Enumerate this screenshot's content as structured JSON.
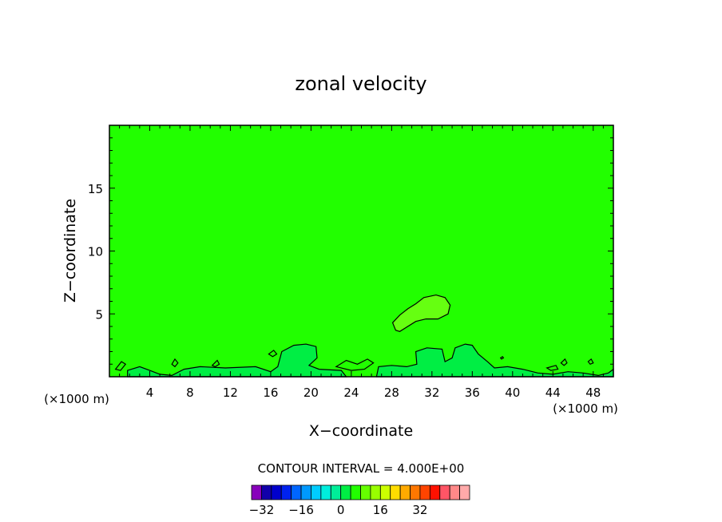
{
  "chart_data": {
    "type": "heatmap",
    "title": "zonal velocity",
    "xlabel": "X−coordinate",
    "ylabel": "Z−coordinate",
    "x_unit_left": "(×1000 m)",
    "x_unit_right": "(×1000 m)",
    "xlim": [
      0,
      50
    ],
    "ylim": [
      0,
      20
    ],
    "x_ticks": [
      4,
      8,
      12,
      16,
      20,
      24,
      28,
      32,
      36,
      40,
      44,
      48
    ],
    "y_ticks": [
      5,
      10,
      15
    ],
    "background_color": "#22ff00",
    "contour_interval_label": "CONTOUR INTERVAL = 4.000E+00",
    "contour_interval": 4,
    "features": [
      {
        "name": "upper-positive-blob",
        "color": "#66ff11",
        "points": [
          [
            28.4,
            3.7
          ],
          [
            28.1,
            4.3
          ],
          [
            28.8,
            4.9
          ],
          [
            29.6,
            5.4
          ],
          [
            30.4,
            5.8
          ],
          [
            31.2,
            6.3
          ],
          [
            32.4,
            6.5
          ],
          [
            33.3,
            6.3
          ],
          [
            33.8,
            5.7
          ],
          [
            33.6,
            5.0
          ],
          [
            32.6,
            4.6
          ],
          [
            31.4,
            4.6
          ],
          [
            30.4,
            4.4
          ],
          [
            29.4,
            3.9
          ],
          [
            28.8,
            3.6
          ]
        ]
      },
      {
        "name": "surface-band-left",
        "color": "#00ee44",
        "points": [
          [
            1.8,
            0.0
          ],
          [
            1.8,
            0.5
          ],
          [
            3.0,
            0.8
          ],
          [
            4.0,
            0.5
          ],
          [
            5.0,
            0.2
          ],
          [
            6.2,
            0.1
          ],
          [
            7.4,
            0.6
          ],
          [
            9.0,
            0.8
          ],
          [
            11.5,
            0.7
          ],
          [
            14.5,
            0.8
          ],
          [
            16.0,
            0.4
          ],
          [
            16.7,
            0.8
          ],
          [
            17.1,
            2.0
          ],
          [
            18.3,
            2.5
          ],
          [
            19.5,
            2.6
          ],
          [
            20.5,
            2.4
          ],
          [
            20.6,
            1.5
          ],
          [
            19.8,
            0.9
          ],
          [
            20.8,
            0.6
          ],
          [
            23.0,
            0.5
          ],
          [
            23.5,
            0.0
          ]
        ]
      },
      {
        "name": "surface-band-right",
        "color": "#00ee44",
        "points": [
          [
            26.5,
            0.0
          ],
          [
            26.7,
            0.8
          ],
          [
            28.0,
            0.9
          ],
          [
            29.5,
            0.8
          ],
          [
            30.5,
            1.0
          ],
          [
            30.4,
            2.0
          ],
          [
            31.5,
            2.3
          ],
          [
            33.0,
            2.2
          ],
          [
            33.3,
            1.2
          ],
          [
            34.0,
            1.5
          ],
          [
            34.3,
            2.3
          ],
          [
            35.3,
            2.6
          ],
          [
            36.0,
            2.5
          ],
          [
            36.6,
            1.8
          ],
          [
            37.5,
            1.2
          ],
          [
            38.2,
            0.7
          ],
          [
            39.5,
            0.8
          ],
          [
            41.0,
            0.6
          ],
          [
            42.5,
            0.3
          ],
          [
            44.0,
            0.2
          ],
          [
            45.5,
            0.4
          ],
          [
            47.0,
            0.3
          ],
          [
            48.5,
            0.1
          ],
          [
            49.5,
            0.3
          ],
          [
            50.0,
            0.6
          ],
          [
            50.0,
            0.0
          ]
        ]
      }
    ],
    "small_contours": [
      {
        "name": "cell-1",
        "points": [
          [
            0.6,
            0.6
          ],
          [
            1.2,
            1.2
          ],
          [
            1.6,
            1.0
          ],
          [
            1.1,
            0.5
          ]
        ]
      },
      {
        "name": "cell-2",
        "points": [
          [
            6.2,
            1.0
          ],
          [
            6.5,
            1.4
          ],
          [
            6.8,
            1.1
          ],
          [
            6.5,
            0.8
          ]
        ]
      },
      {
        "name": "cell-3",
        "points": [
          [
            10.2,
            0.9
          ],
          [
            10.7,
            1.3
          ],
          [
            10.9,
            1.0
          ],
          [
            10.5,
            0.8
          ]
        ]
      },
      {
        "name": "cell-4",
        "points": [
          [
            15.8,
            1.8
          ],
          [
            16.3,
            2.1
          ],
          [
            16.6,
            1.8
          ],
          [
            16.2,
            1.6
          ]
        ]
      },
      {
        "name": "cell-5",
        "points": [
          [
            22.5,
            0.8
          ],
          [
            23.5,
            1.3
          ],
          [
            24.6,
            1.0
          ],
          [
            25.6,
            1.4
          ],
          [
            26.2,
            1.1
          ],
          [
            25.3,
            0.6
          ],
          [
            24.0,
            0.5
          ]
        ]
      },
      {
        "name": "cell-6",
        "points": [
          [
            38.8,
            1.5
          ],
          [
            39.0,
            1.6
          ],
          [
            39.1,
            1.5
          ],
          [
            38.9,
            1.4
          ]
        ]
      },
      {
        "name": "cell-7",
        "points": [
          [
            44.8,
            1.1
          ],
          [
            45.2,
            1.4
          ],
          [
            45.4,
            1.1
          ],
          [
            45.1,
            0.9
          ]
        ]
      },
      {
        "name": "cell-8",
        "points": [
          [
            47.5,
            1.2
          ],
          [
            47.8,
            1.4
          ],
          [
            48.0,
            1.1
          ],
          [
            47.7,
            1.0
          ]
        ]
      },
      {
        "name": "cell-9",
        "points": [
          [
            43.4,
            0.7
          ],
          [
            44.3,
            0.9
          ],
          [
            44.5,
            0.6
          ],
          [
            43.8,
            0.5
          ]
        ]
      }
    ],
    "colorbar": {
      "min": -36,
      "step": 4,
      "colors": [
        "#8800bb",
        "#1100aa",
        "#0000cc",
        "#0022ee",
        "#0066ff",
        "#0099ff",
        "#00ccff",
        "#00eedd",
        "#00ee99",
        "#00ee44",
        "#22ff00",
        "#66ff00",
        "#99ff00",
        "#ccff00",
        "#ffdd00",
        "#ffaa00",
        "#ff7700",
        "#ff4400",
        "#ff1100",
        "#ff5566",
        "#ff8888",
        "#ffaaaa"
      ],
      "labels": [
        {
          "value": -32,
          "text": "−32"
        },
        {
          "value": -16,
          "text": "−16"
        },
        {
          "value": 0,
          "text": "0"
        },
        {
          "value": 16,
          "text": "16"
        },
        {
          "value": 32,
          "text": "32"
        }
      ]
    }
  }
}
